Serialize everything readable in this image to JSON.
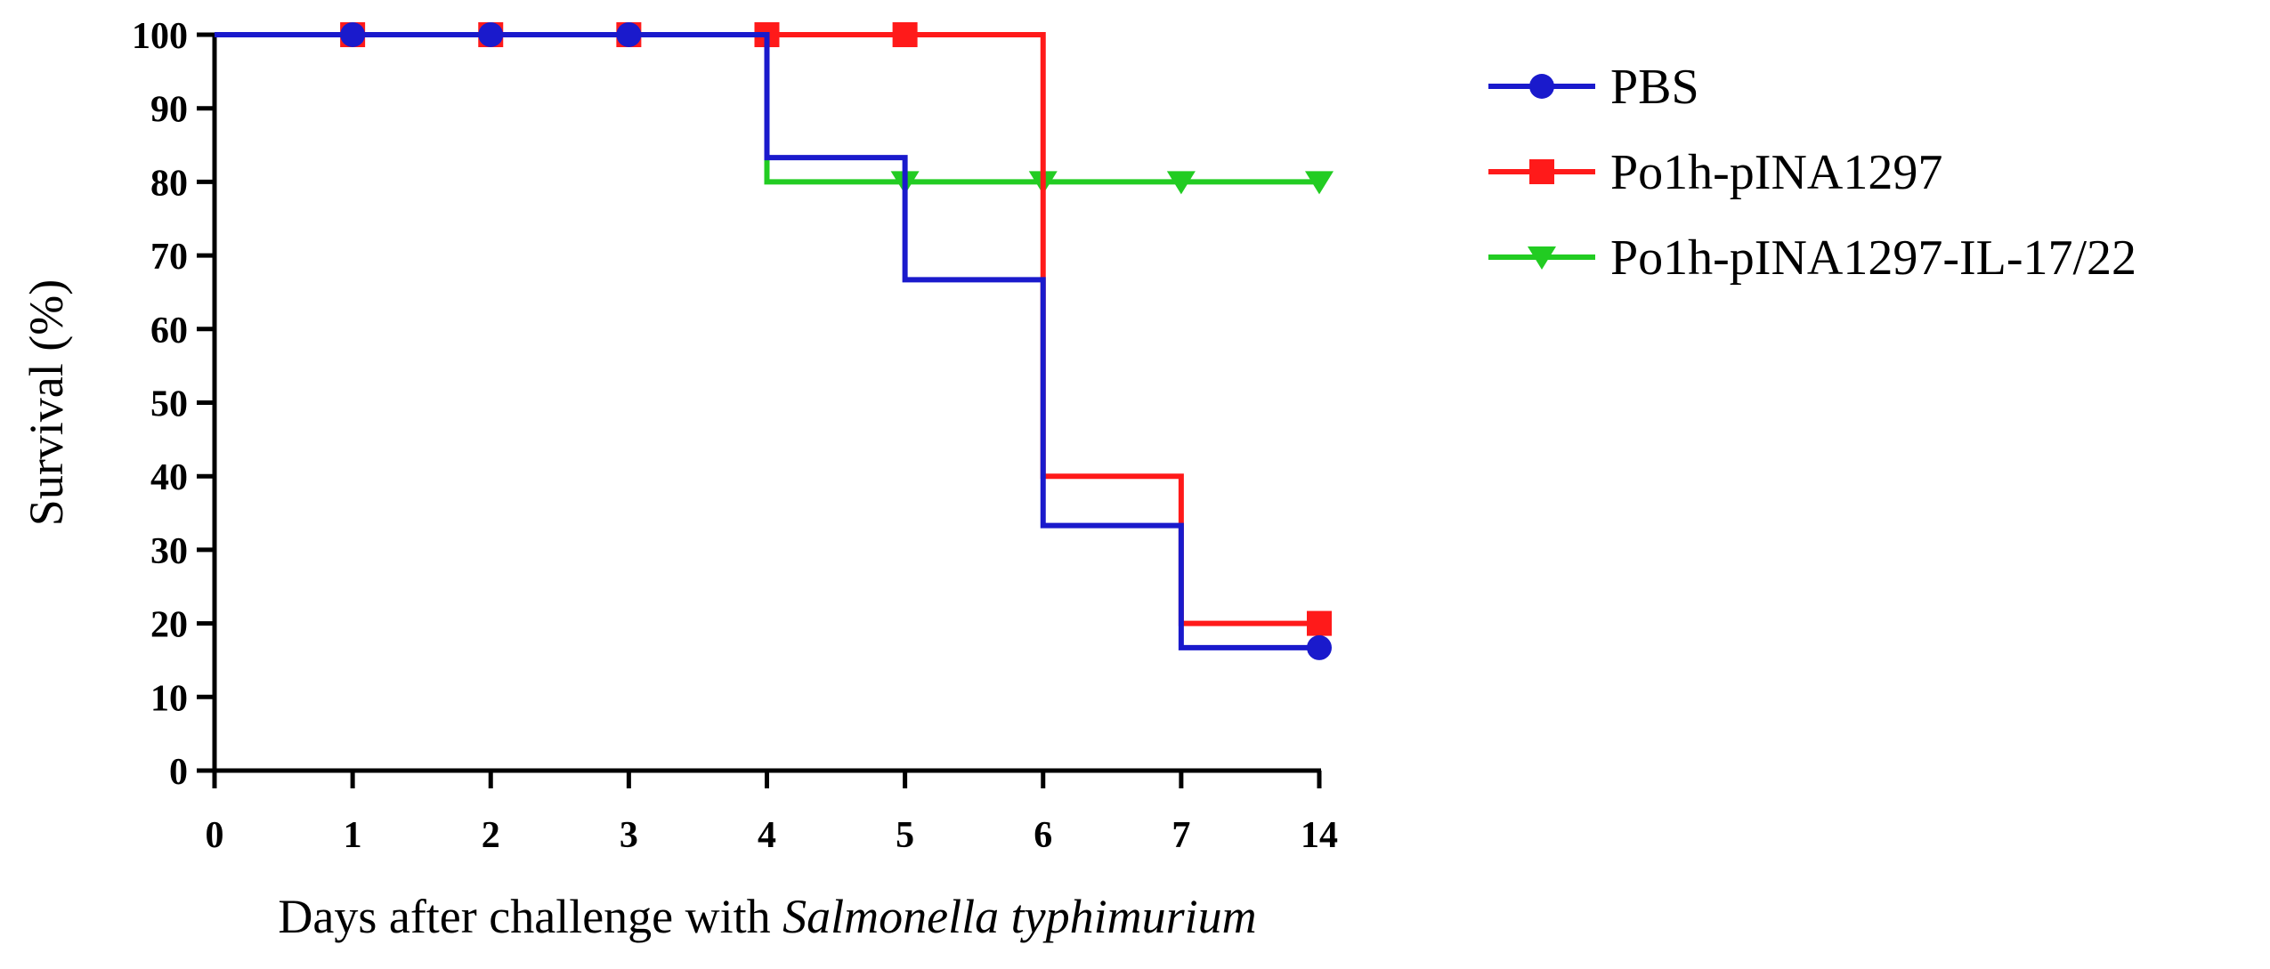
{
  "chart_data": {
    "type": "line",
    "subtype": "kaplan-meier-step",
    "title": "",
    "xlabel_prefix": "Days after challenge with ",
    "xlabel_italic": "Salmonella typhimurium",
    "ylabel": "Survival (%)",
    "x_ticks": [
      "0",
      "1",
      "2",
      "3",
      "4",
      "5",
      "6",
      "7",
      "14"
    ],
    "y_ticks": [
      "0",
      "10",
      "20",
      "30",
      "40",
      "50",
      "60",
      "70",
      "80",
      "90",
      "100"
    ],
    "ylim": [
      0,
      100
    ],
    "legend_position": "top-right",
    "series": [
      {
        "name": "PBS",
        "color": "#1a1acc",
        "marker": "circle",
        "steps": [
          [
            0,
            100
          ],
          [
            4,
            100
          ],
          [
            4,
            83.3
          ],
          [
            5,
            83.3
          ],
          [
            5,
            66.7
          ],
          [
            6,
            66.7
          ],
          [
            6,
            33.3
          ],
          [
            7,
            33.3
          ],
          [
            7,
            16.7
          ],
          [
            14,
            16.7
          ]
        ],
        "markers": [
          [
            1,
            100
          ],
          [
            2,
            100
          ],
          [
            3,
            100
          ],
          [
            14,
            16.7
          ]
        ]
      },
      {
        "name": "Po1h-pINA1297",
        "color": "#ff1a1a",
        "marker": "square",
        "steps": [
          [
            0,
            100
          ],
          [
            6,
            100
          ],
          [
            6,
            40
          ],
          [
            7,
            40
          ],
          [
            7,
            20
          ],
          [
            14,
            20
          ]
        ],
        "markers": [
          [
            1,
            100
          ],
          [
            2,
            100
          ],
          [
            3,
            100
          ],
          [
            4,
            100
          ],
          [
            5,
            100
          ],
          [
            14,
            20
          ]
        ]
      },
      {
        "name": "Po1h-pINA1297-IL-17/22",
        "color": "#22cc22",
        "marker": "triangle-down",
        "steps": [
          [
            0,
            100
          ],
          [
            4,
            100
          ],
          [
            4,
            80
          ],
          [
            14,
            80
          ]
        ],
        "markers": [
          [
            5,
            80
          ],
          [
            6,
            80
          ],
          [
            7,
            80
          ],
          [
            14,
            80
          ]
        ]
      }
    ],
    "draw_order": [
      2,
      1,
      0
    ]
  }
}
